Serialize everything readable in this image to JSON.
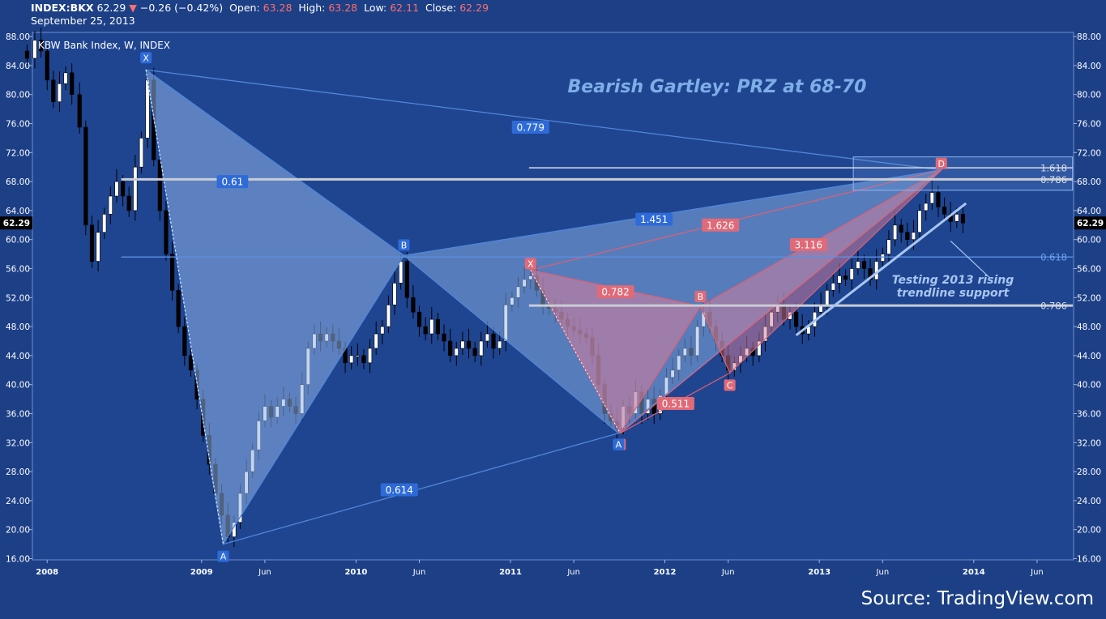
{
  "header": {
    "symbol": "INDEX:BKX",
    "last": "62.29",
    "change": "−0.26 (−0.42%)",
    "open_label": "Open:",
    "open": "63.28",
    "high_label": "High:",
    "high": "63.28",
    "low_label": "Low:",
    "low": "62.11",
    "close_label": "Close:",
    "close": "62.29",
    "date": "September 25, 2013"
  },
  "colors": {
    "background": "#1c3f86",
    "plot_background": "#1f4591",
    "blue_pattern": "#4f86d6",
    "red_pattern": "#e0606f",
    "title_text": "#7eaee6",
    "price_tag": "#000000"
  },
  "chart_data": {
    "type": "candlestick",
    "title": "KBW Bank Index, W, INDEX",
    "annotation_title": "Bearish Gartley: PRZ at 68-70",
    "y_ticks": [
      "88.00",
      "84.00",
      "80.00",
      "76.00",
      "72.00",
      "68.00",
      "64.00",
      "60.00",
      "56.00",
      "52.00",
      "48.00",
      "44.00",
      "40.00",
      "36.00",
      "32.00",
      "28.00",
      "24.00",
      "20.00",
      "16.00"
    ],
    "ylim": [
      16,
      89
    ],
    "x_ticks": [
      {
        "label": "2008",
        "x": 2008.0
      },
      {
        "label": "2009",
        "x": 2009.0
      },
      {
        "label": "Jun",
        "x": 2009.41
      },
      {
        "label": "2010",
        "x": 2010.0
      },
      {
        "label": "Jun",
        "x": 2010.41
      },
      {
        "label": "2011",
        "x": 2011.0
      },
      {
        "label": "Jun",
        "x": 2011.41
      },
      {
        "label": "2012",
        "x": 2012.0
      },
      {
        "label": "Jun",
        "x": 2012.41
      },
      {
        "label": "2013",
        "x": 2013.0
      },
      {
        "label": "Jun",
        "x": 2013.41
      },
      {
        "label": "2014",
        "x": 2014.0
      },
      {
        "label": "Jun",
        "x": 2014.41
      }
    ],
    "xlim": [
      2007.8,
      2014.65
    ],
    "last_price": "62.29",
    "series": [
      {
        "name": "price",
        "points": [
          [
            2007.87,
            85.0
          ],
          [
            2007.92,
            87.5
          ],
          [
            2007.96,
            86.0
          ],
          [
            2008.0,
            82.0
          ],
          [
            2008.04,
            79.0
          ],
          [
            2008.08,
            81.5
          ],
          [
            2008.12,
            83.0
          ],
          [
            2008.16,
            80.0
          ],
          [
            2008.21,
            75.5
          ],
          [
            2008.25,
            62.0
          ],
          [
            2008.29,
            57.0
          ],
          [
            2008.33,
            61.0
          ],
          [
            2008.37,
            63.5
          ],
          [
            2008.41,
            66.0
          ],
          [
            2008.45,
            68.0
          ],
          [
            2008.49,
            66.0
          ],
          [
            2008.53,
            64.0
          ],
          [
            2008.57,
            70.0
          ],
          [
            2008.61,
            74.0
          ],
          [
            2008.65,
            82.0
          ],
          [
            2008.69,
            71.0
          ],
          [
            2008.73,
            64.0
          ],
          [
            2008.77,
            58.0
          ],
          [
            2008.81,
            53.0
          ],
          [
            2008.85,
            48.0
          ],
          [
            2008.89,
            44.0
          ],
          [
            2008.93,
            42.0
          ],
          [
            2008.97,
            38.0
          ],
          [
            2009.01,
            33.0
          ],
          [
            2009.05,
            29.0
          ],
          [
            2009.09,
            25.0
          ],
          [
            2009.13,
            22.0
          ],
          [
            2009.17,
            19.0
          ],
          [
            2009.21,
            21.0
          ],
          [
            2009.25,
            25.0
          ],
          [
            2009.29,
            28.0
          ],
          [
            2009.33,
            31.0
          ],
          [
            2009.37,
            35.0
          ],
          [
            2009.41,
            37.0
          ],
          [
            2009.45,
            35.5
          ],
          [
            2009.49,
            37.0
          ],
          [
            2009.53,
            38.0
          ],
          [
            2009.57,
            37.0
          ],
          [
            2009.61,
            36.0
          ],
          [
            2009.65,
            40.0
          ],
          [
            2009.69,
            45.0
          ],
          [
            2009.73,
            47.0
          ],
          [
            2009.77,
            46.0
          ],
          [
            2009.81,
            47.0
          ],
          [
            2009.85,
            46.0
          ],
          [
            2009.89,
            45.0
          ],
          [
            2009.93,
            43.0
          ],
          [
            2009.97,
            44.0
          ],
          [
            2010.01,
            44.0
          ],
          [
            2010.05,
            43.0
          ],
          [
            2010.09,
            45.0
          ],
          [
            2010.13,
            47.0
          ],
          [
            2010.17,
            48.0
          ],
          [
            2010.21,
            51.0
          ],
          [
            2010.25,
            54.0
          ],
          [
            2010.29,
            57.0
          ],
          [
            2010.33,
            52.0
          ],
          [
            2010.37,
            50.0
          ],
          [
            2010.41,
            48.0
          ],
          [
            2010.45,
            47.0
          ],
          [
            2010.49,
            49.0
          ],
          [
            2010.53,
            47.0
          ],
          [
            2010.57,
            46.0
          ],
          [
            2010.61,
            44.0
          ],
          [
            2010.65,
            45.0
          ],
          [
            2010.69,
            46.0
          ],
          [
            2010.73,
            45.0
          ],
          [
            2010.77,
            44.0
          ],
          [
            2010.81,
            46.0
          ],
          [
            2010.85,
            47.0
          ],
          [
            2010.89,
            45.0
          ],
          [
            2010.93,
            46.0
          ],
          [
            2010.97,
            51.0
          ],
          [
            2011.01,
            52.0
          ],
          [
            2011.05,
            53.5
          ],
          [
            2011.09,
            54.5
          ],
          [
            2011.13,
            55.0
          ],
          [
            2011.17,
            53.0
          ],
          [
            2011.21,
            51.0
          ],
          [
            2011.25,
            50.5
          ],
          [
            2011.29,
            50.0
          ],
          [
            2011.33,
            49.0
          ],
          [
            2011.37,
            48.0
          ],
          [
            2011.41,
            47.5
          ],
          [
            2011.45,
            47.0
          ],
          [
            2011.49,
            46.5
          ],
          [
            2011.53,
            44.0
          ],
          [
            2011.57,
            40.0
          ],
          [
            2011.61,
            36.0
          ],
          [
            2011.65,
            35.0
          ],
          [
            2011.69,
            34.0
          ],
          [
            2011.73,
            37.0
          ],
          [
            2011.77,
            36.0
          ],
          [
            2011.81,
            39.0
          ],
          [
            2011.85,
            36.0
          ],
          [
            2011.89,
            38.0
          ],
          [
            2011.93,
            36.0
          ],
          [
            2011.97,
            38.5
          ],
          [
            2012.01,
            41.0
          ],
          [
            2012.05,
            42.0
          ],
          [
            2012.09,
            44.0
          ],
          [
            2012.13,
            45.0
          ],
          [
            2012.17,
            44.0
          ],
          [
            2012.21,
            48.0
          ],
          [
            2012.25,
            50.0
          ],
          [
            2012.29,
            48.0
          ],
          [
            2012.33,
            46.0
          ],
          [
            2012.37,
            44.0
          ],
          [
            2012.41,
            42.0
          ],
          [
            2012.45,
            43.0
          ],
          [
            2012.49,
            44.0
          ],
          [
            2012.53,
            45.0
          ],
          [
            2012.57,
            44.0
          ],
          [
            2012.61,
            46.0
          ],
          [
            2012.65,
            48.0
          ],
          [
            2012.69,
            50.0
          ],
          [
            2012.73,
            51.0
          ],
          [
            2012.77,
            49.0
          ],
          [
            2012.81,
            50.0
          ],
          [
            2012.85,
            48.0
          ],
          [
            2012.89,
            47.0
          ],
          [
            2012.93,
            48.0
          ],
          [
            2012.97,
            50.0
          ],
          [
            2013.01,
            51.0
          ],
          [
            2013.05,
            53.0
          ],
          [
            2013.09,
            54.0
          ],
          [
            2013.13,
            55.0
          ],
          [
            2013.17,
            54.5
          ],
          [
            2013.21,
            56.0
          ],
          [
            2013.25,
            57.0
          ],
          [
            2013.29,
            56.0
          ],
          [
            2013.33,
            54.5
          ],
          [
            2013.37,
            57.0
          ],
          [
            2013.41,
            58.0
          ],
          [
            2013.45,
            60.0
          ],
          [
            2013.49,
            62.0
          ],
          [
            2013.53,
            61.0
          ],
          [
            2013.57,
            60.0
          ],
          [
            2013.61,
            61.0
          ],
          [
            2013.65,
            64.0
          ],
          [
            2013.69,
            65.0
          ],
          [
            2013.73,
            66.5
          ],
          [
            2013.77,
            64.5
          ],
          [
            2013.81,
            63.5
          ],
          [
            2013.85,
            62.5
          ],
          [
            2013.89,
            63.5
          ],
          [
            2013.93,
            62.29
          ]
        ]
      }
    ],
    "patterns": [
      {
        "name": "gartley-blue",
        "points": [
          {
            "label": "X",
            "x": 2008.64,
            "y": 83.4
          },
          {
            "label": "A",
            "x": 2009.14,
            "y": 18.0
          },
          {
            "label": "B",
            "x": 2010.31,
            "y": 57.8
          },
          {
            "label": "A",
            "x": 2011.7,
            "y": 33.3
          },
          {
            "label": "D",
            "x": 2013.79,
            "y": 69.6
          }
        ],
        "ratios": [
          {
            "label": "0.61",
            "x": 2009.2,
            "y": 68.0
          },
          {
            "label": "0.779",
            "x": 2011.13,
            "y": 75.5
          },
          {
            "label": "1.451",
            "x": 2011.93,
            "y": 62.8
          },
          {
            "label": "0.614",
            "x": 2010.28,
            "y": 25.5
          }
        ]
      },
      {
        "name": "gartley-red",
        "points": [
          {
            "label": "X",
            "x": 2011.13,
            "y": 55.8
          },
          {
            "label": "A",
            "x": 2011.71,
            "y": 33.3
          },
          {
            "label": "B",
            "x": 2012.23,
            "y": 50.8
          },
          {
            "label": "C",
            "x": 2012.42,
            "y": 41.6
          },
          {
            "label": "D",
            "x": 2013.79,
            "y": 69.6
          }
        ],
        "ratios": [
          {
            "label": "0.782",
            "x": 2011.68,
            "y": 52.8
          },
          {
            "label": "0.511",
            "x": 2012.07,
            "y": 37.4
          },
          {
            "label": "1.626",
            "x": 2012.36,
            "y": 62.0
          },
          {
            "label": "3.116",
            "x": 2012.93,
            "y": 59.3
          }
        ]
      }
    ],
    "levels": [
      {
        "label": "1.618",
        "y": 69.9
      },
      {
        "label": "0.786",
        "y": 68.3
      },
      {
        "label": "0.618",
        "y": 57.6
      },
      {
        "label": "0.786",
        "y": 50.9
      }
    ],
    "trendline_text": [
      "Testing 2013 rising",
      "trendline support"
    ],
    "source": "Source: TradingView.com"
  }
}
